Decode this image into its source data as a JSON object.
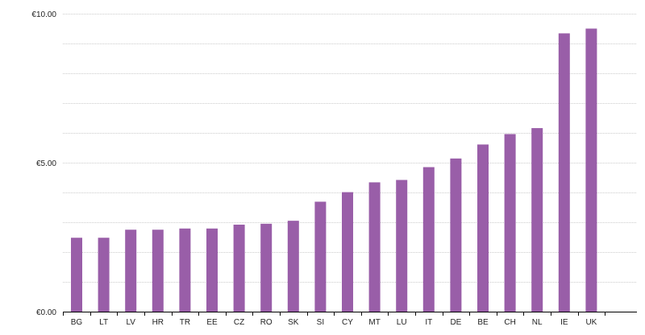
{
  "chart_data": {
    "type": "bar",
    "title": "",
    "xlabel": "",
    "ylabel": "",
    "ylim": [
      0,
      10
    ],
    "grid": true,
    "y_ticks": [
      {
        "value": 0,
        "label": "€0.00"
      },
      {
        "value": 5,
        "label": "€5.00"
      },
      {
        "value": 10,
        "label": "€10.00"
      }
    ],
    "minor_grid_step": 1,
    "bar_color": "#995ea8",
    "grid_color": "#cccccc",
    "categories": [
      "BG",
      "LT",
      "LV",
      "HR",
      "TR",
      "EE",
      "CZ",
      "RO",
      "SK",
      "SI",
      "CY",
      "MT",
      "LU",
      "IT",
      "DE",
      "BE",
      "CH",
      "NL",
      "IE",
      "UK"
    ],
    "values": [
      2.48,
      2.48,
      2.75,
      2.75,
      2.79,
      2.79,
      2.92,
      2.95,
      3.05,
      3.69,
      4.01,
      4.34,
      4.42,
      4.85,
      5.14,
      5.61,
      5.96,
      6.16,
      9.34,
      9.5
    ]
  }
}
